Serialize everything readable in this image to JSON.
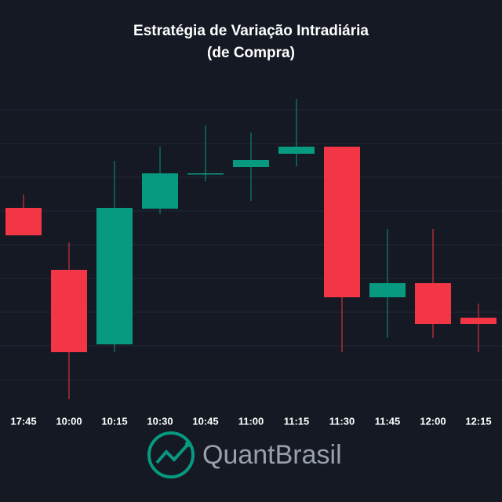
{
  "chart_data": {
    "type": "candlestick",
    "title": [
      "Estratégia de Variação Intradiária",
      "(de Compra)"
    ],
    "categories": [
      "17:45",
      "10:00",
      "10:15",
      "10:30",
      "10:45",
      "11:00",
      "11:15",
      "11:30",
      "11:45",
      "12:00",
      "12:15"
    ],
    "series": [
      {
        "name": "open",
        "values": [
          23.5,
          15.6,
          6.1,
          23.4,
          27.9,
          28.7,
          30.4,
          31.3,
          12.1,
          13.9,
          9.5
        ]
      },
      {
        "name": "high",
        "values": [
          25.2,
          19.1,
          29.5,
          31.3,
          34.0,
          33.1,
          37.4,
          31.3,
          20.8,
          20.8,
          11.3
        ]
      },
      {
        "name": "low",
        "values": [
          20.0,
          -0.9,
          5.1,
          22.7,
          26.9,
          24.4,
          28.8,
          5.1,
          6.9,
          6.9,
          5.1
        ]
      },
      {
        "name": "close",
        "values": [
          20.0,
          5.1,
          23.5,
          27.9,
          27.9,
          29.6,
          31.3,
          12.1,
          13.9,
          8.7,
          8.7
        ]
      }
    ],
    "up_color": "#089981",
    "down_color": "#f23645",
    "ylim": [
      -2,
      38
    ]
  },
  "logo": {
    "text": [
      "Quant",
      "Brasil"
    ]
  }
}
